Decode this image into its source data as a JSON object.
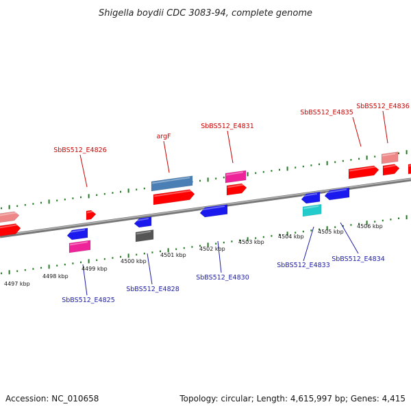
{
  "title": "Shigella boydii CDC 3083-94, complete genome",
  "footer": {
    "accession": "Accession: NC_010658",
    "summary": "Topology: circular; Length: 4,615,997 bp; Genes: 4,415"
  },
  "colors": {
    "backbone": "#8c8c8c",
    "tick": "#1f7a1f",
    "label_top": "#cc0000",
    "label_bottom": "#1a1aaa",
    "red": "#ff0000",
    "pink": "#ee8888",
    "magenta": "#ee2299",
    "steelblue": "#4a7fb5",
    "blue": "#1a1aee",
    "cyan": "#22cccc",
    "gray": "#555555"
  },
  "kbp_labels": [
    "4497 kbp",
    "4498 kbp",
    "4499 kbp",
    "4500 kbp",
    "4501 kbp",
    "4502 kbp",
    "4503 kbp",
    "4504 kbp",
    "4505 kbp",
    "4506 kbp"
  ],
  "gene_labels_top": [
    "SbBS512_E4826",
    "argF",
    "SbBS512_E4831",
    "SbBS512_E4835",
    "SbBS512_E4836"
  ],
  "gene_labels_bottom": [
    "SbBS512_E4825",
    "SbBS512_E4828",
    "SbBS512_E4830",
    "SbBS512_E4833",
    "SbBS512_E4834"
  ]
}
